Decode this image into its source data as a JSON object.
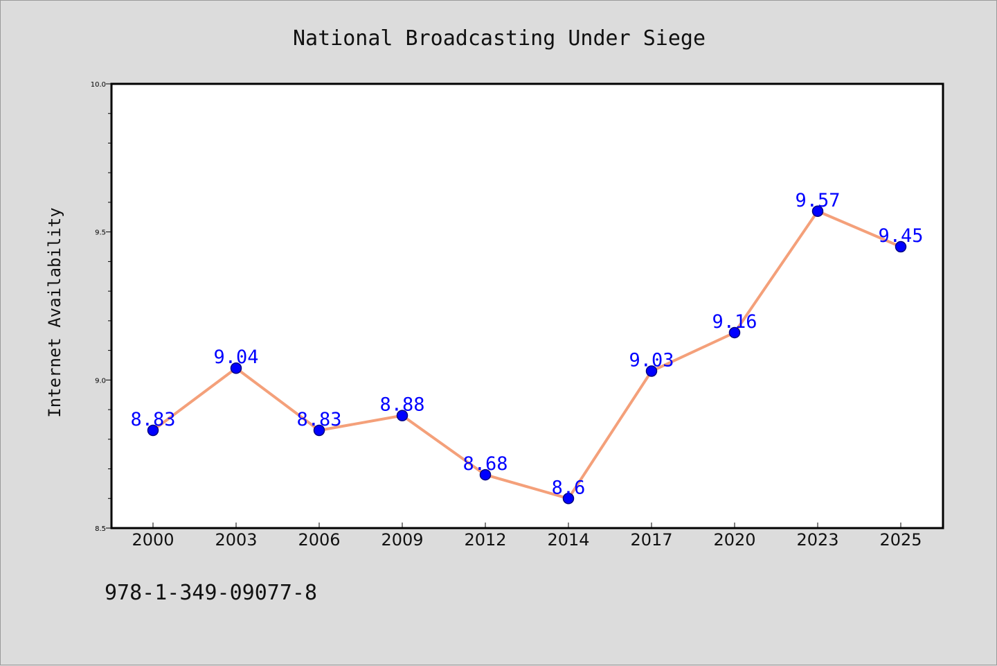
{
  "chart_data": {
    "type": "line",
    "title": "National Broadcasting Under Siege",
    "xlabel": "",
    "ylabel": "Internet Availability",
    "categories": [
      "2000",
      "2003",
      "2006",
      "2009",
      "2012",
      "2014",
      "2017",
      "2020",
      "2023",
      "2025"
    ],
    "values": [
      8.83,
      9.04,
      8.83,
      8.88,
      8.68,
      8.6,
      9.03,
      9.16,
      9.57,
      9.45
    ],
    "data_labels": [
      "8.83",
      "9.04",
      "8.83",
      "8.88",
      "8.68",
      "8.6",
      "9.03",
      "9.16",
      "9.57",
      "9.45"
    ],
    "ylim": [
      8.5,
      10.0
    ],
    "y_ticks": [
      "8.5",
      "9.0",
      "9.5",
      "10.0"
    ],
    "y_minor_step": 0.1,
    "grid": false,
    "legend": "none",
    "colors": {
      "line": "#f4a07a",
      "marker": "#0000ff",
      "marker_edge": "#000080",
      "data_label": "#0000ff",
      "background": "#dcdcdc",
      "plot_background": "#ffffff"
    }
  },
  "footer": {
    "isbn": "978-1-349-09077-8"
  }
}
